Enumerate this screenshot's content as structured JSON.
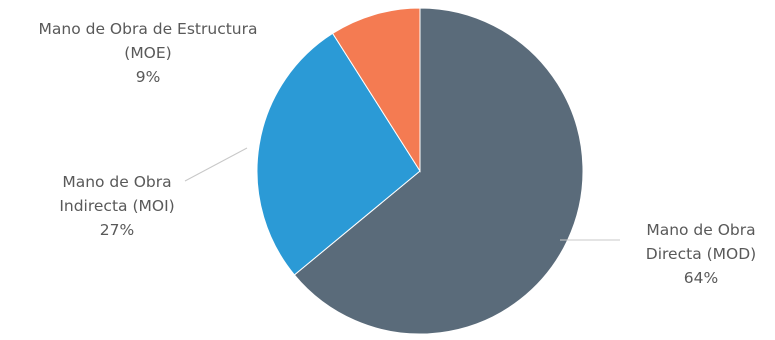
{
  "chart_data": {
    "type": "pie",
    "slices": [
      {
        "name": "Mano de Obra Directa (MOD)",
        "label_lines": [
          "Mano de Obra",
          "Directa (MOD)"
        ],
        "percent_label": "64%",
        "value": 64,
        "color": "#5a6b7a"
      },
      {
        "name": "Mano de Obra Indirecta (MOI)",
        "label_lines": [
          "Mano de Obra",
          "Indirecta (MOI)"
        ],
        "percent_label": "27%",
        "value": 27,
        "color": "#2b9ad6"
      },
      {
        "name": "Mano de Obra de Estructura (MOE)",
        "label_lines": [
          "Mano de Obra de Estructura",
          "(MOE)"
        ],
        "percent_label": "9%",
        "value": 9,
        "color": "#f47b52"
      }
    ],
    "start_angle": "12 o'clock",
    "direction": "clockwise",
    "legend": "none",
    "leader_line_color": "#c8c8c8"
  }
}
